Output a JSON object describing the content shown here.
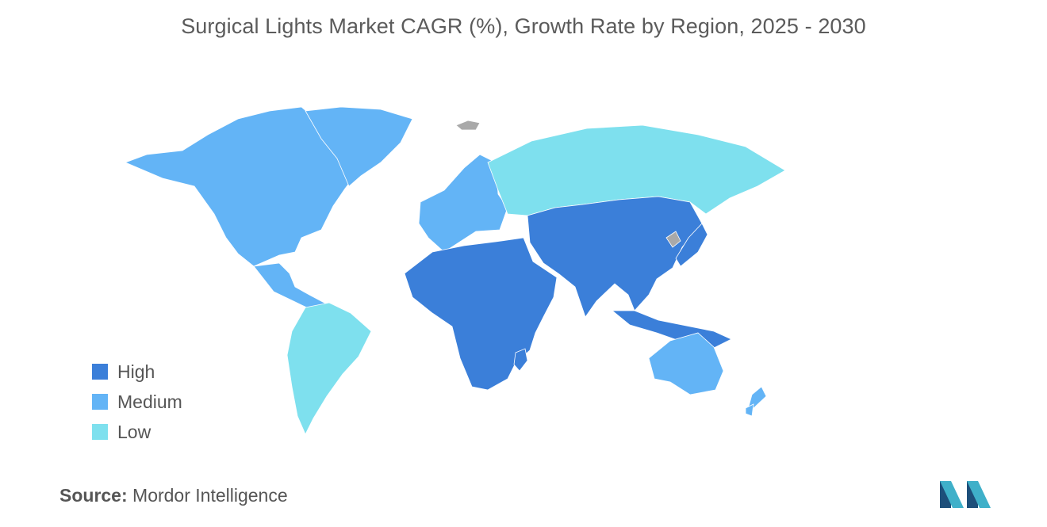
{
  "title": "Surgical Lights Market CAGR (%), Growth Rate by Region, 2025 - 2030",
  "legend": {
    "items": [
      {
        "label": "High",
        "color": "#3b7fd9"
      },
      {
        "label": "Medium",
        "color": "#63b4f6"
      },
      {
        "label": "Low",
        "color": "#7ee0ee"
      }
    ],
    "no_data_color": "#a9a9a9"
  },
  "regions": [
    {
      "name": "North America",
      "level": "Medium"
    },
    {
      "name": "Europe",
      "level": "Medium"
    },
    {
      "name": "Russia / Northern Asia",
      "level": "Low"
    },
    {
      "name": "Asia-Pacific",
      "level": "High"
    },
    {
      "name": "Middle East and Africa",
      "level": "High"
    },
    {
      "name": "South America",
      "level": "Low"
    },
    {
      "name": "Australia and New Zealand",
      "level": "Medium"
    }
  ],
  "source": {
    "label": "Source:",
    "value": "Mordor Intelligence"
  },
  "logo": {
    "name": "mordor-intelligence-logo",
    "colors": [
      "#1d4f7a",
      "#3fb0c9"
    ]
  }
}
